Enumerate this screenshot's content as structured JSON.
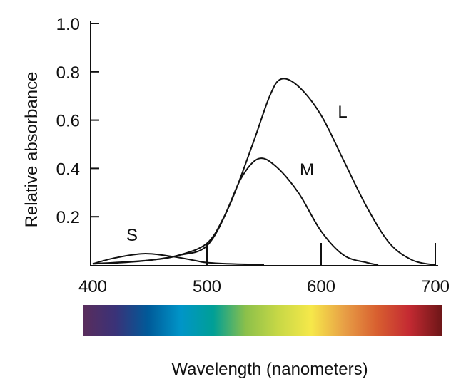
{
  "chart_data": {
    "type": "line",
    "title": "",
    "xlabel": "Wavelength (nanometers)",
    "ylabel": "Relative absorbance",
    "xlim": [
      400,
      700
    ],
    "ylim": [
      0,
      1.0
    ],
    "x_ticks": [
      "400",
      "500",
      "600",
      "700"
    ],
    "y_ticks": [
      "1.0",
      "0.8",
      "0.6",
      "0.4",
      "0.2"
    ],
    "grid": false,
    "legend": "none (curves labeled directly)",
    "spectrum_bar_colors": [
      "#5a2d5c",
      "#3a3278",
      "#005a99",
      "#0095c8",
      "#009f96",
      "#8cc04a",
      "#c8d846",
      "#f6e84a",
      "#e8a046",
      "#d86030",
      "#c42a32",
      "#6e1618"
    ],
    "series": [
      {
        "name": "S",
        "x": [
          400,
          420,
          445,
          470,
          490,
          500,
          525,
          550
        ],
        "y": [
          0.005,
          0.03,
          0.047,
          0.035,
          0.018,
          0.01,
          0.004,
          0.002
        ]
      },
      {
        "name": "M",
        "x": [
          400,
          450,
          475,
          500,
          515,
          530,
          545,
          560,
          580,
          600,
          620,
          640,
          650
        ],
        "y": [
          0.005,
          0.02,
          0.04,
          0.09,
          0.2,
          0.36,
          0.44,
          0.41,
          0.3,
          0.14,
          0.04,
          0.01,
          0
        ]
      },
      {
        "name": "L",
        "x": [
          400,
          425,
          450,
          475,
          500,
          520,
          540,
          555,
          565,
          580,
          600,
          620,
          640,
          660,
          680,
          700
        ],
        "y": [
          0.005,
          0.01,
          0.02,
          0.04,
          0.08,
          0.25,
          0.5,
          0.7,
          0.77,
          0.74,
          0.62,
          0.43,
          0.24,
          0.09,
          0.02,
          0
        ]
      }
    ]
  }
}
